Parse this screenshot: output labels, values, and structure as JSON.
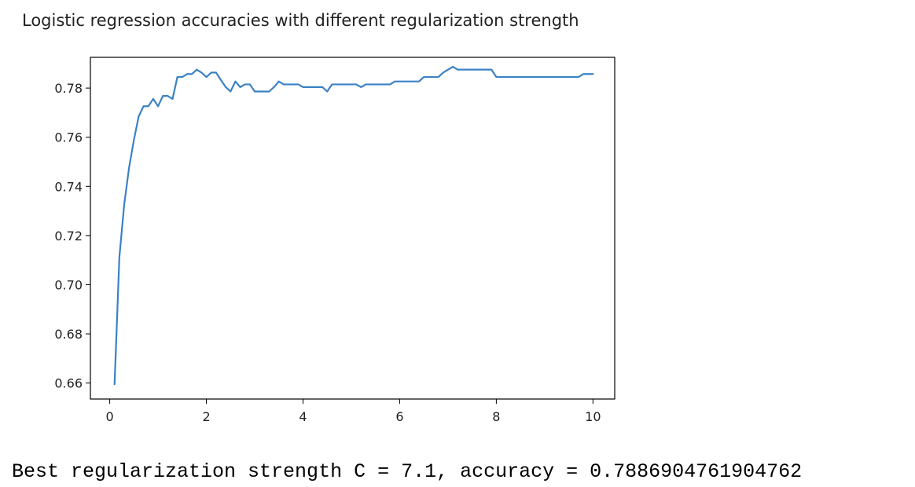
{
  "chart_data": {
    "type": "line",
    "title": "Logistic regression accuracies with different regularization strength",
    "xlabel": "",
    "ylabel": "",
    "xlim": [
      -0.4,
      10.45
    ],
    "ylim": [
      0.6535,
      0.7925
    ],
    "xticks": [
      0,
      2,
      4,
      6,
      8,
      10
    ],
    "yticks": [
      0.66,
      0.68,
      0.7,
      0.72,
      0.74,
      0.76,
      0.78
    ],
    "grid": false,
    "line_color": "#3b82c4",
    "x": [
      0.1,
      0.2,
      0.3,
      0.4,
      0.5,
      0.6,
      0.7,
      0.8,
      0.9,
      1.0,
      1.1,
      1.2,
      1.3,
      1.4,
      1.5,
      1.6,
      1.7,
      1.8,
      1.9,
      2.0,
      2.1,
      2.2,
      2.3,
      2.4,
      2.5,
      2.6,
      2.7,
      2.8,
      2.9,
      3.0,
      3.1,
      3.2,
      3.3,
      3.4,
      3.5,
      3.6,
      3.7,
      3.8,
      3.9,
      4.0,
      4.1,
      4.2,
      4.3,
      4.4,
      4.5,
      4.6,
      4.7,
      4.8,
      4.9,
      5.0,
      5.1,
      5.2,
      5.3,
      5.4,
      5.5,
      5.6,
      5.7,
      5.8,
      5.9,
      6.0,
      6.1,
      6.2,
      6.3,
      6.4,
      6.5,
      6.6,
      6.7,
      6.8,
      6.9,
      7.0,
      7.1,
      7.2,
      7.3,
      7.4,
      7.5,
      7.6,
      7.7,
      7.8,
      7.9,
      8.0,
      8.1,
      8.2,
      8.3,
      8.4,
      8.5,
      8.6,
      8.7,
      8.8,
      8.9,
      9.0,
      9.1,
      9.2,
      9.3,
      9.4,
      9.5,
      9.6,
      9.7,
      9.8,
      9.9,
      10.0
    ],
    "y": [
      0.6595,
      0.7113,
      0.7327,
      0.7476,
      0.7589,
      0.7685,
      0.7726,
      0.7726,
      0.7756,
      0.7726,
      0.7768,
      0.7768,
      0.7756,
      0.7845,
      0.7845,
      0.7857,
      0.7857,
      0.7875,
      0.7863,
      0.7845,
      0.7863,
      0.7863,
      0.7833,
      0.7804,
      0.7786,
      0.7827,
      0.7804,
      0.7815,
      0.7815,
      0.7786,
      0.7786,
      0.7786,
      0.7786,
      0.7804,
      0.7827,
      0.7815,
      0.7815,
      0.7815,
      0.7815,
      0.7804,
      0.7804,
      0.7804,
      0.7804,
      0.7804,
      0.7786,
      0.7815,
      0.7815,
      0.7815,
      0.7815,
      0.7815,
      0.7815,
      0.7804,
      0.7815,
      0.7815,
      0.7815,
      0.7815,
      0.7815,
      0.7815,
      0.7827,
      0.7827,
      0.7827,
      0.7827,
      0.7827,
      0.7827,
      0.7845,
      0.7845,
      0.7845,
      0.7845,
      0.7863,
      0.7875,
      0.7887,
      0.7875,
      0.7875,
      0.7875,
      0.7875,
      0.7875,
      0.7875,
      0.7875,
      0.7875,
      0.7845,
      0.7845,
      0.7845,
      0.7845,
      0.7845,
      0.7845,
      0.7845,
      0.7845,
      0.7845,
      0.7845,
      0.7845,
      0.7845,
      0.7845,
      0.7845,
      0.7845,
      0.7845,
      0.7845,
      0.7845,
      0.7857,
      0.7857,
      0.7857
    ]
  },
  "output": {
    "text": "Best regularization strength C = 7.1, accuracy = 0.7886904761904762"
  }
}
